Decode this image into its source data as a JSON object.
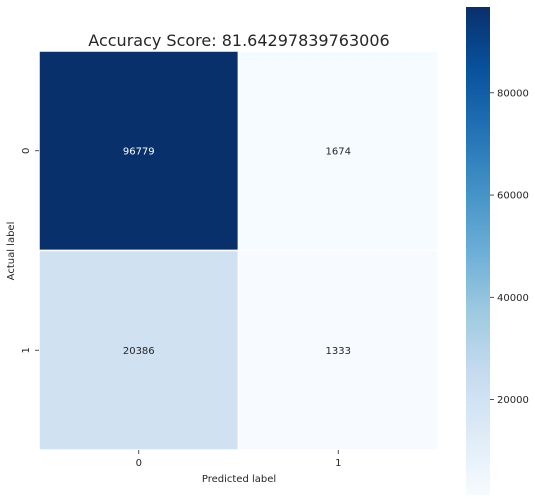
{
  "chart_data": {
    "type": "heatmap",
    "title": "Accuracy Score: 81.64297839763006",
    "xlabel": "Predicted label",
    "ylabel": "Actual label",
    "x_categories": [
      "0",
      "1"
    ],
    "y_categories": [
      "0",
      "1"
    ],
    "values": [
      [
        96779,
        1674
      ],
      [
        20386,
        1333
      ]
    ],
    "colormap": "Blues",
    "colorbar": {
      "ticks": [
        20000,
        40000,
        60000,
        80000
      ],
      "tick_labels": [
        "20000",
        "40000",
        "60000",
        "80000"
      ],
      "vmin": 1333,
      "vmax": 96779
    },
    "annot_colors": {
      "dark_bg": "#ffffff",
      "light_bg": "#262626"
    }
  }
}
